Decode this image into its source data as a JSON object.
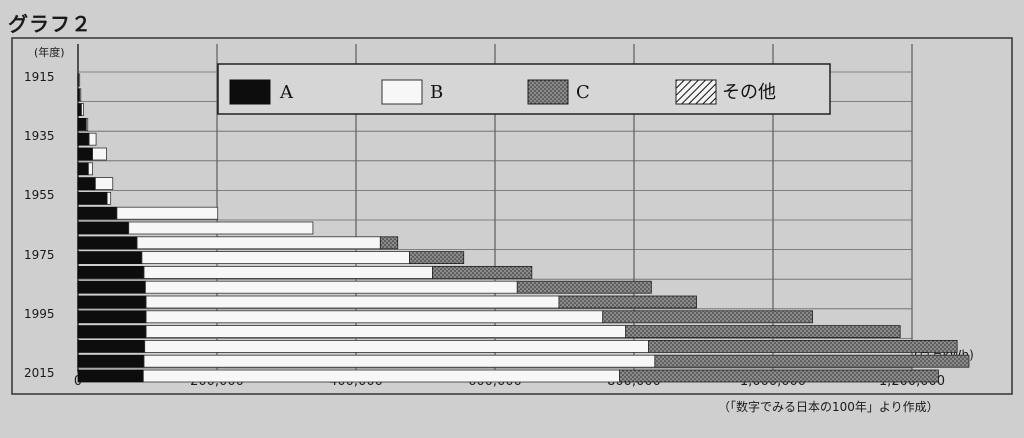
{
  "title": "グラフ２",
  "source": "（「数字でみる日本の100年」より作成）",
  "chart_data": {
    "type": "bar",
    "orientation": "horizontal",
    "stacked": true,
    "ylabel": "(年度)",
    "xlabel": "",
    "unit": "(百万kWh)",
    "xlim": [
      0,
      1200000
    ],
    "xticks": [
      0,
      200000,
      400000,
      600000,
      800000,
      1000000,
      1200000
    ],
    "xtick_labels": [
      "0",
      "200,000",
      "400,000",
      "600,000",
      "800,000",
      "1,000,000",
      "1,200,000"
    ],
    "ytick_labels": [
      "1915",
      "1935",
      "1955",
      "1975",
      "1995",
      "2015"
    ],
    "categories": [
      "1915",
      "1920",
      "1925",
      "1930",
      "1935",
      "1940",
      "1945",
      "1950",
      "1955",
      "1960",
      "1965",
      "1970",
      "1975",
      "1980",
      "1985",
      "1990",
      "1995",
      "2000",
      "2005",
      "2010",
      "2015"
    ],
    "legend_position": "top",
    "grid": true,
    "series": [
      {
        "name": "A",
        "pattern": "solid-black",
        "values": [
          1000,
          2500,
          5000,
          12000,
          16000,
          21000,
          15000,
          25000,
          42000,
          56000,
          73000,
          85000,
          92000,
          95000,
          97000,
          98000,
          98000,
          98000,
          96000,
          95000,
          94000
        ]
      },
      {
        "name": "B",
        "pattern": "white",
        "values": [
          500,
          1500,
          3000,
          2000,
          10000,
          20000,
          6000,
          25000,
          5000,
          145000,
          265000,
          350000,
          385000,
          415000,
          535000,
          594000,
          657000,
          690000,
          725000,
          735000,
          685000
        ]
      },
      {
        "name": "C",
        "pattern": "dotted-gray",
        "values": [
          0,
          0,
          0,
          0,
          0,
          0,
          0,
          0,
          0,
          0,
          0,
          25000,
          78000,
          143000,
          193000,
          198000,
          302000,
          395000,
          444000,
          452000,
          459000
        ]
      },
      {
        "name": "その他",
        "pattern": "hatched",
        "values": [
          0,
          0,
          0,
          0,
          0,
          0,
          0,
          0,
          0,
          0,
          0,
          0,
          0,
          0,
          0,
          0,
          0,
          0,
          0,
          0,
          0
        ]
      }
    ]
  }
}
